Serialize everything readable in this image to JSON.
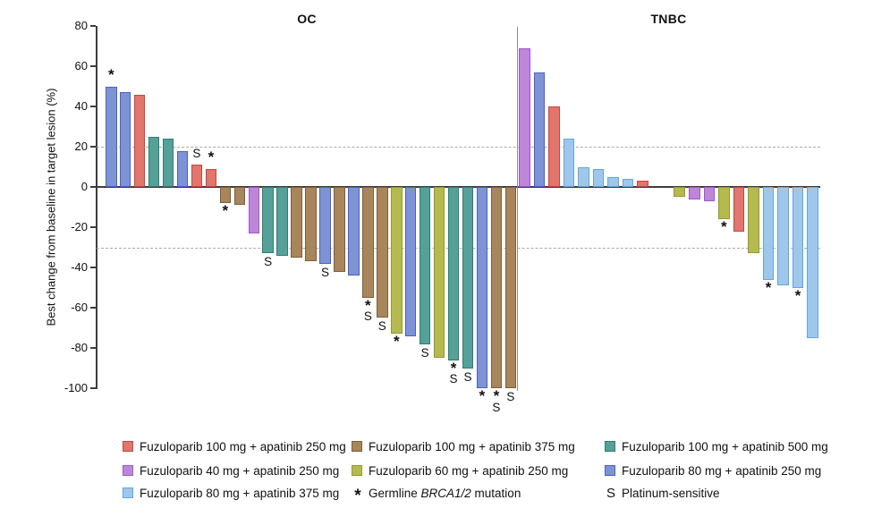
{
  "chart_data": {
    "type": "bar",
    "subtype": "waterfall",
    "ylabel": "Best change from baseline in target lesion (%)",
    "ylim": [
      -100,
      80
    ],
    "yticks": [
      80,
      60,
      40,
      20,
      0,
      -20,
      -40,
      -60,
      -80,
      -100
    ],
    "threshold_lines": [
      20,
      -30
    ],
    "grid": false,
    "mark_meanings": {
      "*": "Germline BRCA1/2 mutation",
      "S": "Platinum-sensitive"
    },
    "panels": [
      {
        "name": "OC",
        "bars": [
          {
            "value": 50,
            "color": "blue",
            "marks": "*"
          },
          {
            "value": 47,
            "color": "blue",
            "marks": ""
          },
          {
            "value": 46,
            "color": "red",
            "marks": ""
          },
          {
            "value": 25,
            "color": "teal",
            "marks": ""
          },
          {
            "value": 24,
            "color": "teal",
            "marks": ""
          },
          {
            "value": 18,
            "color": "blue",
            "marks": ""
          },
          {
            "value": 11,
            "color": "red",
            "marks": "S"
          },
          {
            "value": 9,
            "color": "red",
            "marks": "*"
          },
          {
            "value": -8,
            "color": "brown",
            "marks": "*"
          },
          {
            "value": -9,
            "color": "brown",
            "marks": ""
          },
          {
            "value": -23,
            "color": "purple",
            "marks": ""
          },
          {
            "value": -33,
            "color": "teal",
            "marks": "S"
          },
          {
            "value": -34,
            "color": "teal",
            "marks": ""
          },
          {
            "value": -35,
            "color": "brown",
            "marks": ""
          },
          {
            "value": -37,
            "color": "brown",
            "marks": ""
          },
          {
            "value": -38,
            "color": "blue",
            "marks": "S"
          },
          {
            "value": -42,
            "color": "brown",
            "marks": ""
          },
          {
            "value": -44,
            "color": "blue",
            "marks": ""
          },
          {
            "value": -55,
            "color": "brown",
            "marks": "*S"
          },
          {
            "value": -65,
            "color": "brown",
            "marks": "S"
          },
          {
            "value": -73,
            "color": "olive",
            "marks": "*"
          },
          {
            "value": -74,
            "color": "blue",
            "marks": ""
          },
          {
            "value": -78,
            "color": "teal",
            "marks": "S"
          },
          {
            "value": -85,
            "color": "olive",
            "marks": ""
          },
          {
            "value": -86,
            "color": "teal",
            "marks": "*S"
          },
          {
            "value": -90,
            "color": "teal",
            "marks": "S"
          },
          {
            "value": -100,
            "color": "blue",
            "marks": "*"
          },
          {
            "value": -100,
            "color": "brown",
            "marks": "*S"
          },
          {
            "value": -100,
            "color": "brown",
            "marks": "S"
          }
        ]
      },
      {
        "name": "TNBC",
        "gap_after": 9,
        "bars": [
          {
            "value": 69,
            "color": "purple",
            "marks": ""
          },
          {
            "value": 57,
            "color": "blue",
            "marks": ""
          },
          {
            "value": 40,
            "color": "red",
            "marks": ""
          },
          {
            "value": 24,
            "color": "lightblue",
            "marks": ""
          },
          {
            "value": 10,
            "color": "lightblue",
            "marks": ""
          },
          {
            "value": 9,
            "color": "lightblue",
            "marks": ""
          },
          {
            "value": 5,
            "color": "lightblue",
            "marks": ""
          },
          {
            "value": 4,
            "color": "lightblue",
            "marks": ""
          },
          {
            "value": 3,
            "color": "red",
            "marks": ""
          },
          {
            "value": -5,
            "color": "olive",
            "marks": ""
          },
          {
            "value": -6,
            "color": "purple",
            "marks": ""
          },
          {
            "value": -7,
            "color": "purple",
            "marks": ""
          },
          {
            "value": -16,
            "color": "olive",
            "marks": "*"
          },
          {
            "value": -22,
            "color": "red",
            "marks": ""
          },
          {
            "value": -33,
            "color": "olive",
            "marks": ""
          },
          {
            "value": -46,
            "color": "lightblue",
            "marks": "*"
          },
          {
            "value": -49,
            "color": "lightblue",
            "marks": ""
          },
          {
            "value": -50,
            "color": "lightblue",
            "marks": "*"
          },
          {
            "value": -75,
            "color": "lightblue",
            "marks": ""
          }
        ]
      }
    ],
    "colors": {
      "red": {
        "fill": "#E0766D",
        "border": "#C4473D"
      },
      "brown": {
        "fill": "#A9855C",
        "border": "#7E5E38"
      },
      "teal": {
        "fill": "#55A199",
        "border": "#2F7C72"
      },
      "purple": {
        "fill": "#BD86D8",
        "border": "#A256CC"
      },
      "olive": {
        "fill": "#B4BA4E",
        "border": "#8F9A30"
      },
      "blue": {
        "fill": "#7E93D4",
        "border": "#4A5FC8"
      },
      "lightblue": {
        "fill": "#9FC7EB",
        "border": "#60A6E0"
      }
    }
  },
  "legend": {
    "columns": [
      [
        {
          "color": "red",
          "label": "Fuzuloparib 100 mg + apatinib 250 mg"
        },
        {
          "color": "purple",
          "label": "Fuzuloparib 40 mg + apatinib 250 mg"
        },
        {
          "color": "lightblue",
          "label": "Fuzuloparib 80 mg + apatinib 375 mg"
        }
      ],
      [
        {
          "color": "brown",
          "label": "Fuzuloparib 100 mg + apatinib 375 mg"
        },
        {
          "color": "olive",
          "label": "Fuzuloparib 60 mg + apatinib 250 mg"
        },
        {
          "symbol": "*",
          "label_prefix": "Germline ",
          "label_italic": "BRCA1/2",
          "label_suffix": " mutation"
        }
      ],
      [
        {
          "color": "teal",
          "label": "Fuzuloparib 100 mg + apatinib 500 mg"
        },
        {
          "color": "blue",
          "label": "Fuzuloparib 80 mg + apatinib 250 mg"
        },
        {
          "symbol": "S",
          "label": "Platinum-sensitive"
        }
      ]
    ]
  }
}
